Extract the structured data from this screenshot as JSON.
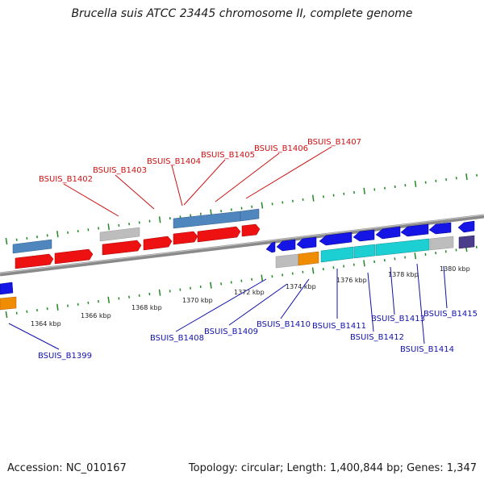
{
  "title": "Brucella suis ATCC 23445 chromosome II, complete genome",
  "footer": {
    "accession": "Accession: NC_010167",
    "topology": "Topology: circular; Length: 1,400,844 bp; Genes: 1,347"
  },
  "colors": {
    "forward_cds": "#ee1111",
    "reverse_cds": "#1515e6",
    "forward_label": "#cc1111",
    "reverse_label": "#1111aa",
    "tick": "#228822",
    "backbone": "#888888",
    "steelblue": "#4f86bd",
    "cyan": "#1ccfd2",
    "gray": "#bdbdbd",
    "orange": "#f08c00",
    "purple": "#4b3c8c"
  },
  "kbp_labels": [
    "1364 kbp",
    "1366 kbp",
    "1368 kbp",
    "1370 kbp",
    "1372 kbp",
    "1374 kbp",
    "1376 kbp",
    "1378 kbp",
    "1380 kbp"
  ],
  "forward_genes": [
    "BSUIS_B1402",
    "BSUIS_B1403",
    "BSUIS_B1404",
    "BSUIS_B1405",
    "BSUIS_B1406",
    "BSUIS_B1407"
  ],
  "reverse_genes": [
    "BSUIS_B1399",
    "BSUIS_B1408",
    "BSUIS_B1409",
    "BSUIS_B1410",
    "BSUIS_B1411",
    "BSUIS_B1412",
    "BSUIS_B1413",
    "BSUIS_B1414",
    "BSUIS_B1415"
  ]
}
